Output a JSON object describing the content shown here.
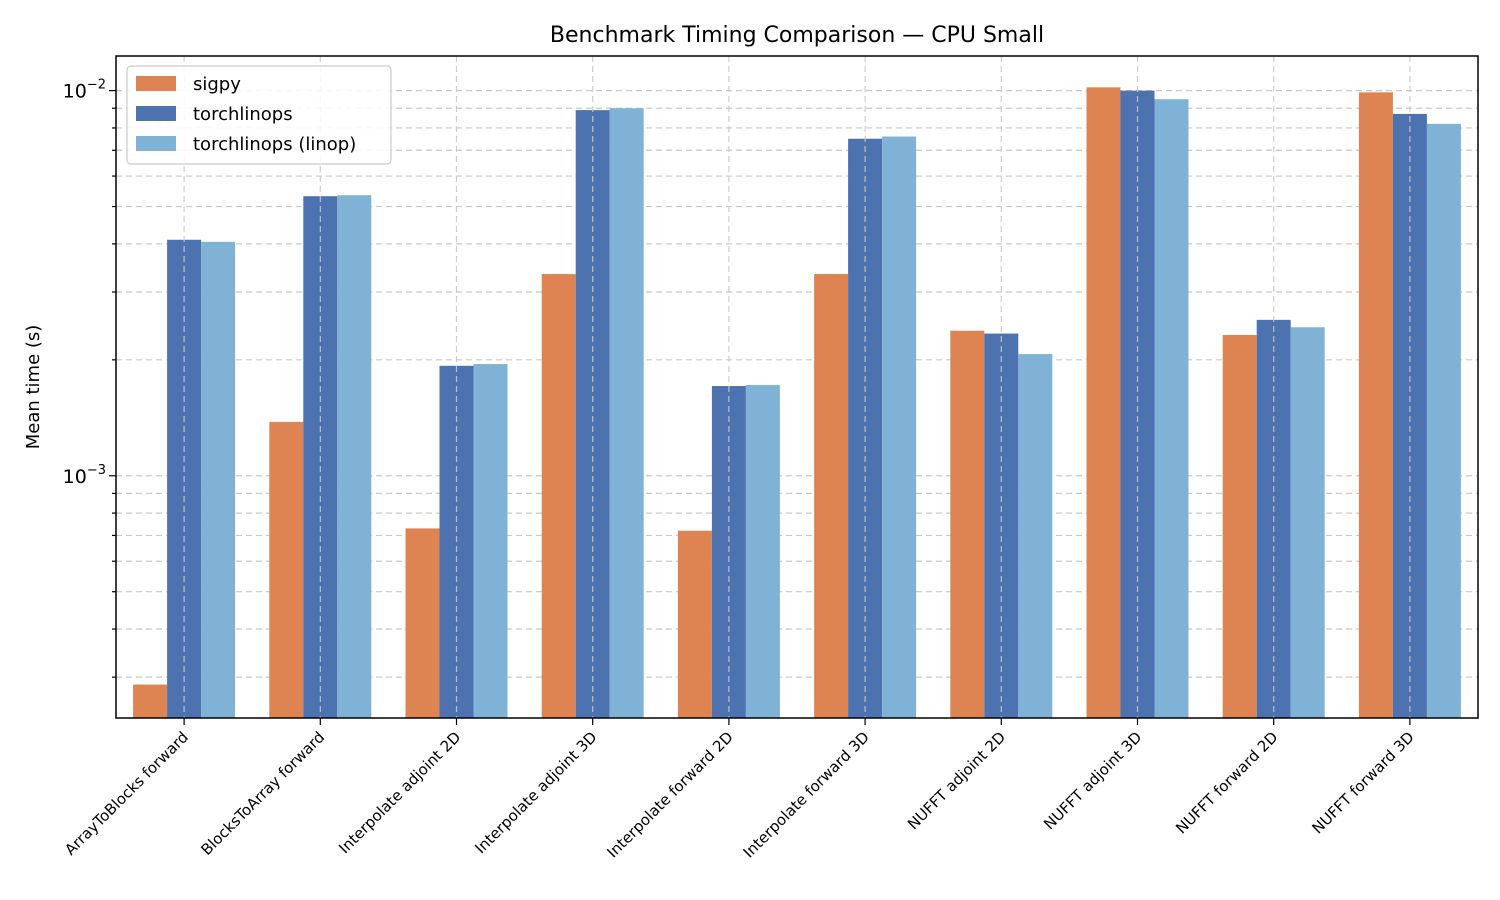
{
  "chart_data": {
    "type": "bar",
    "title": "Benchmark Timing Comparison — CPU Small",
    "xlabel": "",
    "ylabel": "Mean time (s)",
    "yscale": "log",
    "ylim": [
      0.000235,
      0.0123
    ],
    "grid": true,
    "legend_position": "top-left",
    "categories": [
      "ArrayToBlocks forward",
      "BlocksToArray forward",
      "Interpolate adjoint 2D",
      "Interpolate adjoint 3D",
      "Interpolate forward 2D",
      "Interpolate forward 3D",
      "NUFFT adjoint 2D",
      "NUFFT adjoint 3D",
      "NUFFT forward 2D",
      "NUFFT forward 3D"
    ],
    "series": [
      {
        "name": "sigpy",
        "color": "#dd8452",
        "values": [
          0.000287,
          0.00138,
          0.00073,
          0.00334,
          0.00072,
          0.00334,
          0.00238,
          0.0102,
          0.00232,
          0.0099
        ]
      },
      {
        "name": "torchlinops",
        "color": "#4c72b0",
        "values": [
          0.0041,
          0.00532,
          0.00193,
          0.0089,
          0.00171,
          0.0075,
          0.00234,
          0.01,
          0.00254,
          0.0087
        ]
      },
      {
        "name": "torchlinops (linop)",
        "color": "#7fb2d5",
        "values": [
          0.00405,
          0.00535,
          0.00195,
          0.009,
          0.00172,
          0.0076,
          0.00207,
          0.0095,
          0.00243,
          0.0082
        ]
      }
    ],
    "yticks": [
      {
        "base": "10",
        "exp": "−3",
        "value": 0.001
      },
      {
        "base": "10",
        "exp": "−2",
        "value": 0.01
      }
    ]
  }
}
